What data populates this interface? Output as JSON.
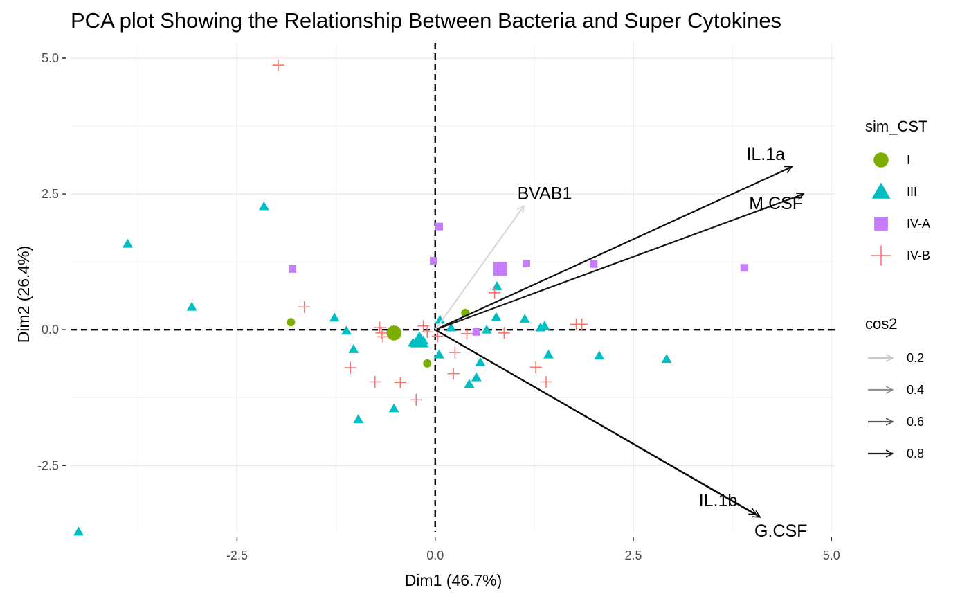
{
  "chart_data": {
    "type": "scatter",
    "title": "PCA plot Showing the Relationship Between Bacteria and Super Cytokines",
    "xlabel": "Dim1 (46.7%)",
    "ylabel": "Dim2 (26.4%)",
    "xlim": [
      -4.6,
      5.05
    ],
    "ylim": [
      -3.72,
      5.28
    ],
    "x_ticks": [
      -2.5,
      0.0,
      2.5,
      5.0
    ],
    "x_tick_labels": [
      "-2.5",
      "0.0",
      "2.5",
      "5.0"
    ],
    "y_ticks": [
      -2.5,
      0.0,
      2.5,
      5.0
    ],
    "y_tick_labels": [
      "-2.5",
      "0.0",
      "2.5",
      "5.0"
    ],
    "grid": true,
    "reference_lines": {
      "x": 0,
      "y": 0,
      "style": "dashed"
    },
    "legend_position": "right",
    "groups_legend_title": "sim_CST",
    "groups": [
      {
        "name": "I",
        "shape": "circle",
        "color": "#7CAE00",
        "points": [
          [
            -1.82,
            0.14
          ],
          [
            0.38,
            0.31
          ],
          [
            -0.1,
            -0.62
          ]
        ],
        "centroid": [
          -0.52,
          -0.06
        ]
      },
      {
        "name": "III",
        "shape": "triangle",
        "color": "#00BFC4",
        "points": [
          [
            -4.5,
            -3.72
          ],
          [
            -3.88,
            1.58
          ],
          [
            -3.07,
            0.42
          ],
          [
            -2.16,
            2.27
          ],
          [
            -1.27,
            0.22
          ],
          [
            -1.12,
            -0.02
          ],
          [
            -1.03,
            -0.36
          ],
          [
            -0.97,
            -1.65
          ],
          [
            -0.52,
            -1.45
          ],
          [
            -0.28,
            -0.24
          ],
          [
            -0.15,
            -0.2
          ],
          [
            0.06,
            0.18
          ],
          [
            0.05,
            -0.46
          ],
          [
            0.2,
            0.04
          ],
          [
            0.43,
            -1.0
          ],
          [
            0.52,
            -0.88
          ],
          [
            0.57,
            -0.6
          ],
          [
            0.65,
            0.0
          ],
          [
            0.77,
            0.23
          ],
          [
            0.78,
            0.8
          ],
          [
            1.13,
            0.2
          ],
          [
            1.33,
            0.04
          ],
          [
            1.38,
            0.07
          ],
          [
            1.43,
            -0.46
          ],
          [
            2.07,
            -0.48
          ],
          [
            2.92,
            -0.54
          ]
        ],
        "centroid": [
          -0.2,
          -0.2
        ]
      },
      {
        "name": "IV-A",
        "shape": "square",
        "color": "#C77CFF",
        "points": [
          [
            -1.8,
            1.12
          ],
          [
            0.05,
            1.9
          ],
          [
            -0.02,
            1.27
          ],
          [
            1.15,
            1.22
          ],
          [
            2.0,
            1.21
          ],
          [
            3.9,
            1.14
          ],
          [
            0.52,
            -0.04
          ]
        ],
        "centroid": [
          0.82,
          1.12
        ]
      },
      {
        "name": "IV-B",
        "shape": "plus",
        "color": "#F8766D",
        "points": [
          [
            -1.98,
            4.87
          ],
          [
            -1.65,
            0.42
          ],
          [
            -1.07,
            -0.7
          ],
          [
            -0.76,
            -0.96
          ],
          [
            -0.7,
            0.04
          ],
          [
            -0.68,
            -0.06
          ],
          [
            -0.66,
            -0.13
          ],
          [
            -0.44,
            -0.97
          ],
          [
            -0.24,
            -1.29
          ],
          [
            -0.15,
            0.07
          ],
          [
            -0.1,
            -0.04
          ],
          [
            0.03,
            -0.12
          ],
          [
            0.23,
            -0.81
          ],
          [
            0.25,
            -0.42
          ],
          [
            0.4,
            -0.07
          ],
          [
            0.75,
            0.68
          ],
          [
            0.87,
            -0.06
          ],
          [
            1.27,
            -0.69
          ],
          [
            1.4,
            -0.96
          ],
          [
            1.78,
            0.1
          ],
          [
            1.85,
            0.1
          ]
        ]
      }
    ],
    "variables_legend_title": "cos2",
    "variables": [
      {
        "name": "IL.1a",
        "x": 4.5,
        "y": 3.0,
        "cos2": 0.85
      },
      {
        "name": "M.CSF",
        "x": 4.65,
        "y": 2.5,
        "cos2": 0.82
      },
      {
        "name": "BVAB1",
        "x": 1.12,
        "y": 2.28,
        "cos2": 0.15
      },
      {
        "name": "IL.1b",
        "x": 4.05,
        "y": -3.4,
        "cos2": 0.86
      },
      {
        "name": "G.CSF",
        "x": 4.1,
        "y": -3.45,
        "cos2": 0.87
      }
    ],
    "cos2_legend": [
      "0.2",
      "0.4",
      "0.6",
      "0.8"
    ]
  }
}
